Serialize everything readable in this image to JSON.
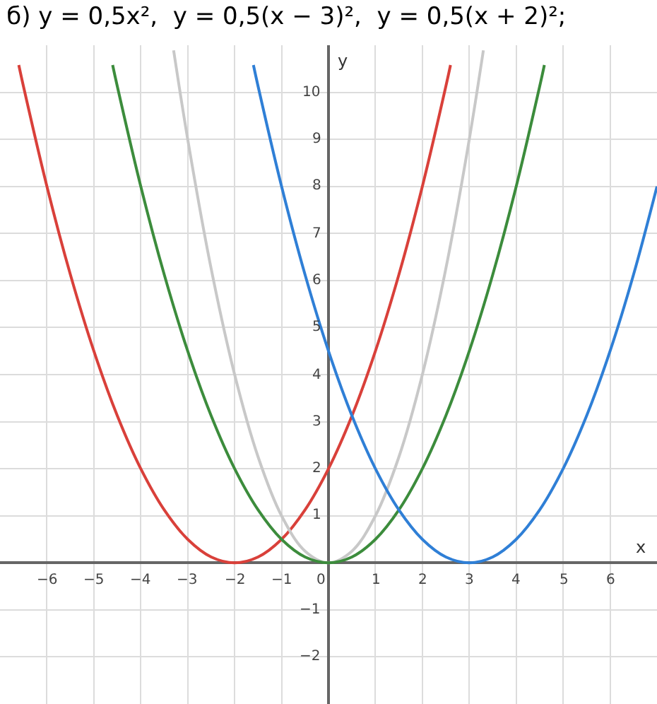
{
  "chart_data": {
    "type": "line",
    "title": "б) y = 0,5x²,  y = 0,5(x − 3)²,  y = 0,5(x + 2)²;",
    "xlabel": "x",
    "ylabel": "y",
    "xlim": [
      -7,
      7
    ],
    "ylim": [
      -3,
      11
    ],
    "xticks": [
      -6,
      -5,
      -4,
      -3,
      -2,
      -1,
      0,
      1,
      2,
      3,
      4,
      5,
      6
    ],
    "yticks": [
      -2,
      -1,
      1,
      2,
      3,
      4,
      5,
      6,
      7,
      8,
      9,
      10
    ],
    "grid": true,
    "marker": "none",
    "line_style": "solid",
    "series": [
      {
        "color": "#d9403a",
        "x": [
          -6.6,
          -6.5,
          -6,
          -5.5,
          -5,
          -4.5,
          -4,
          -3.5,
          -3,
          -2.5,
          -2,
          -1.5,
          -1,
          -0.5,
          0,
          0.5,
          1,
          1.5,
          2,
          2.5,
          2.6
        ],
        "values": [
          10.58,
          10.125,
          8,
          6.125,
          4.5,
          3.125,
          2,
          1.125,
          0.5,
          0.125,
          0,
          0.125,
          0.5,
          1.125,
          2,
          3.125,
          4.5,
          6.125,
          8,
          10.125,
          10.58
        ]
      },
      {
        "color": "#c8c8c8",
        "x": [
          -3.3,
          -3,
          -2.5,
          -2,
          -1.5,
          -1,
          -0.5,
          0,
          0.5,
          1,
          1.5,
          2,
          2.5,
          3,
          3.3
        ],
        "values": [
          10.89,
          9,
          6.25,
          4,
          2.25,
          1,
          0.25,
          0,
          0.25,
          1,
          2.25,
          4,
          6.25,
          9,
          10.89
        ]
      },
      {
        "color": "#3c8c3c",
        "x": [
          -4.6,
          -4.5,
          -4,
          -3.5,
          -3,
          -2.5,
          -2,
          -1.5,
          -1,
          -0.5,
          0,
          0.5,
          1,
          1.5,
          2,
          2.5,
          3,
          3.5,
          4,
          4.5,
          4.6
        ],
        "values": [
          10.58,
          10.125,
          8,
          6.125,
          4.5,
          3.125,
          2,
          1.125,
          0.5,
          0.125,
          0,
          0.125,
          0.5,
          1.125,
          2,
          3.125,
          4.5,
          6.125,
          8,
          10.125,
          10.58
        ]
      },
      {
        "color": "#2f7fd6",
        "x": [
          -1.6,
          -1.5,
          -1,
          -0.5,
          0,
          0.5,
          1,
          1.5,
          2,
          2.5,
          3,
          3.5,
          4,
          4.5,
          5,
          5.5,
          6,
          6.5,
          7
        ],
        "values": [
          10.58,
          10.125,
          8,
          6.125,
          4.5,
          3.125,
          2,
          1.125,
          0.5,
          0.125,
          0,
          0.125,
          0.5,
          1.125,
          2,
          3.125,
          4.5,
          6.125,
          8
        ]
      }
    ]
  }
}
